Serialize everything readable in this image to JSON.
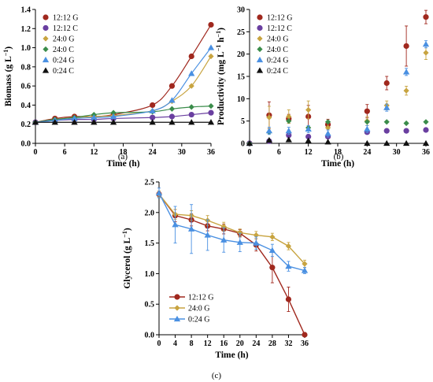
{
  "colors": {
    "12:12 G": "#A0281E",
    "12:12 C": "#6A3FA0",
    "24:0 G": "#C8A440",
    "24:0 C": "#3A8C4A",
    "0:24 G": "#4A90E2",
    "0:24 C": "#111111"
  },
  "markers": {
    "12:12 G": "circle",
    "12:12 C": "circle",
    "24:0 G": "diamond",
    "24:0 C": "diamond",
    "0:24 G": "triangle",
    "0:24 C": "triangle"
  },
  "chart_data": [
    {
      "id": "a",
      "type": "scatter",
      "panel_label": "(a)",
      "xlabel": "Time (h)",
      "ylabel": "Biomass (g L",
      "ylabel_sup": "−1",
      "ylabel_close": ")",
      "xlim": [
        0,
        36
      ],
      "ylim": [
        0,
        1.4
      ],
      "xticks": [
        0,
        6,
        12,
        18,
        24,
        30,
        36
      ],
      "yticks": [
        0.0,
        0.2,
        0.4,
        0.6,
        0.8,
        1.0,
        1.2,
        1.4
      ],
      "ytick_labels": [
        "0.0",
        "0.2",
        "0.4",
        "0.6",
        "0.8",
        "1.0",
        "1.2",
        "1.4"
      ],
      "legend": "top-left",
      "fit_lines": true,
      "x": [
        0,
        4,
        8,
        12,
        16,
        24,
        28,
        32,
        36
      ],
      "series": [
        {
          "name": "12:12 G",
          "values": [
            0.22,
            0.26,
            0.28,
            0.28,
            0.3,
            0.4,
            0.6,
            0.91,
            1.24
          ]
        },
        {
          "name": "12:12 C",
          "values": [
            0.22,
            0.24,
            0.25,
            0.25,
            0.26,
            0.27,
            0.28,
            0.3,
            0.32
          ]
        },
        {
          "name": "24:0 G",
          "values": [
            0.22,
            0.25,
            0.27,
            0.28,
            0.29,
            0.34,
            0.44,
            0.6,
            0.91
          ]
        },
        {
          "name": "24:0 C",
          "values": [
            0.22,
            0.25,
            0.27,
            0.3,
            0.32,
            0.33,
            0.36,
            0.38,
            0.39
          ]
        },
        {
          "name": "0:24 G",
          "values": [
            0.22,
            0.24,
            0.26,
            0.27,
            0.28,
            0.34,
            0.45,
            0.73,
            1.0
          ]
        },
        {
          "name": "0:24 C",
          "values": [
            0.22,
            0.22,
            0.22,
            0.22,
            0.22,
            0.22,
            0.22,
            0.22,
            0.22
          ]
        }
      ]
    },
    {
      "id": "b",
      "type": "scatter",
      "panel_label": "(b)",
      "xlabel": "Time (h)",
      "ylabel": "Productivity (mg L",
      "ylabel_sup": "−1",
      "ylabel_mid": " h",
      "ylabel_sup2": "−1",
      "ylabel_close": ")",
      "xlim": [
        0,
        36
      ],
      "ylim": [
        0,
        30
      ],
      "xticks": [
        0,
        6,
        12,
        18,
        24,
        30,
        36
      ],
      "yticks": [
        0,
        5,
        10,
        15,
        20,
        25,
        30
      ],
      "ytick_labels": [
        "0",
        "5",
        "10",
        "15",
        "20",
        "25",
        "30"
      ],
      "legend": "top-left",
      "fit_lines": false,
      "x": [
        0,
        4,
        8,
        12,
        16,
        24,
        28,
        32,
        36
      ],
      "series": [
        {
          "name": "12:12 G",
          "values": [
            0,
            6.3,
            5.5,
            6.0,
            4.2,
            7.2,
            13.5,
            21.8,
            28.3
          ],
          "err": [
            0,
            3.0,
            1.0,
            2.5,
            1.2,
            1.5,
            1.5,
            4.5,
            1.5
          ]
        },
        {
          "name": "12:12 C",
          "values": [
            0,
            0.5,
            1.8,
            1.5,
            1.5,
            2.5,
            2.8,
            2.8,
            3.0
          ]
        },
        {
          "name": "24:0 G",
          "values": [
            0,
            5.8,
            6.0,
            7.5,
            3.5,
            5.0,
            8.5,
            11.8,
            20.3
          ],
          "err": [
            0,
            2.5,
            1.5,
            2.0,
            1.5,
            1.0,
            1.0,
            1.0,
            1.5
          ]
        },
        {
          "name": "24:0 C",
          "values": [
            0,
            2.5,
            5.0,
            3.5,
            4.8,
            4.8,
            4.8,
            4.5,
            4.8
          ]
        },
        {
          "name": "0:24 G",
          "values": [
            0,
            2.8,
            2.8,
            3.2,
            2.2,
            3.2,
            8.0,
            16.0,
            22.2
          ],
          "err": [
            0,
            0.8,
            0.8,
            0.8,
            0.8,
            0.8,
            0.8,
            0.8,
            0.8
          ]
        },
        {
          "name": "0:24 C",
          "values": [
            0,
            0.7,
            0.8,
            0.6,
            0.3,
            0,
            0,
            0,
            0
          ]
        }
      ]
    },
    {
      "id": "c",
      "type": "scatter",
      "panel_label": "(c)",
      "xlabel": "Time (h)",
      "ylabel": "Glycerol (g L",
      "ylabel_sup": "−1",
      "ylabel_close": ")",
      "xlim": [
        0,
        36
      ],
      "ylim": [
        0,
        2.5
      ],
      "xticks": [
        0,
        4,
        8,
        12,
        16,
        20,
        24,
        28,
        32,
        36
      ],
      "yticks": [
        0.0,
        0.5,
        1.0,
        1.5,
        2.0,
        2.5
      ],
      "ytick_labels": [
        "0.0",
        "0.5",
        "1.0",
        "1.5",
        "2.0",
        "2.5"
      ],
      "legend": "bottom-left",
      "fit_lines": false,
      "connect": true,
      "x": [
        0,
        4,
        8,
        12,
        16,
        20,
        24,
        28,
        32,
        36
      ],
      "series": [
        {
          "name": "12:12 G",
          "values": [
            2.3,
            1.95,
            1.88,
            1.78,
            1.73,
            1.66,
            1.47,
            1.1,
            0.58,
            0.0
          ],
          "err": [
            0.05,
            0.1,
            0.1,
            0.08,
            0.08,
            0.06,
            0.1,
            0.25,
            0.2,
            0.02
          ]
        },
        {
          "name": "24:0 G",
          "values": [
            2.3,
            1.97,
            1.95,
            1.87,
            1.77,
            1.67,
            1.63,
            1.6,
            1.45,
            1.16
          ],
          "err": [
            0.05,
            0.08,
            0.08,
            0.08,
            0.07,
            0.06,
            0.06,
            0.06,
            0.06,
            0.06
          ]
        },
        {
          "name": "0:24 G",
          "values": [
            2.32,
            1.8,
            1.73,
            1.63,
            1.55,
            1.51,
            1.5,
            1.38,
            1.12,
            1.05
          ],
          "err": [
            0.08,
            0.3,
            0.4,
            0.25,
            0.2,
            0.15,
            0.1,
            0.1,
            0.08,
            0.05
          ]
        }
      ]
    }
  ]
}
